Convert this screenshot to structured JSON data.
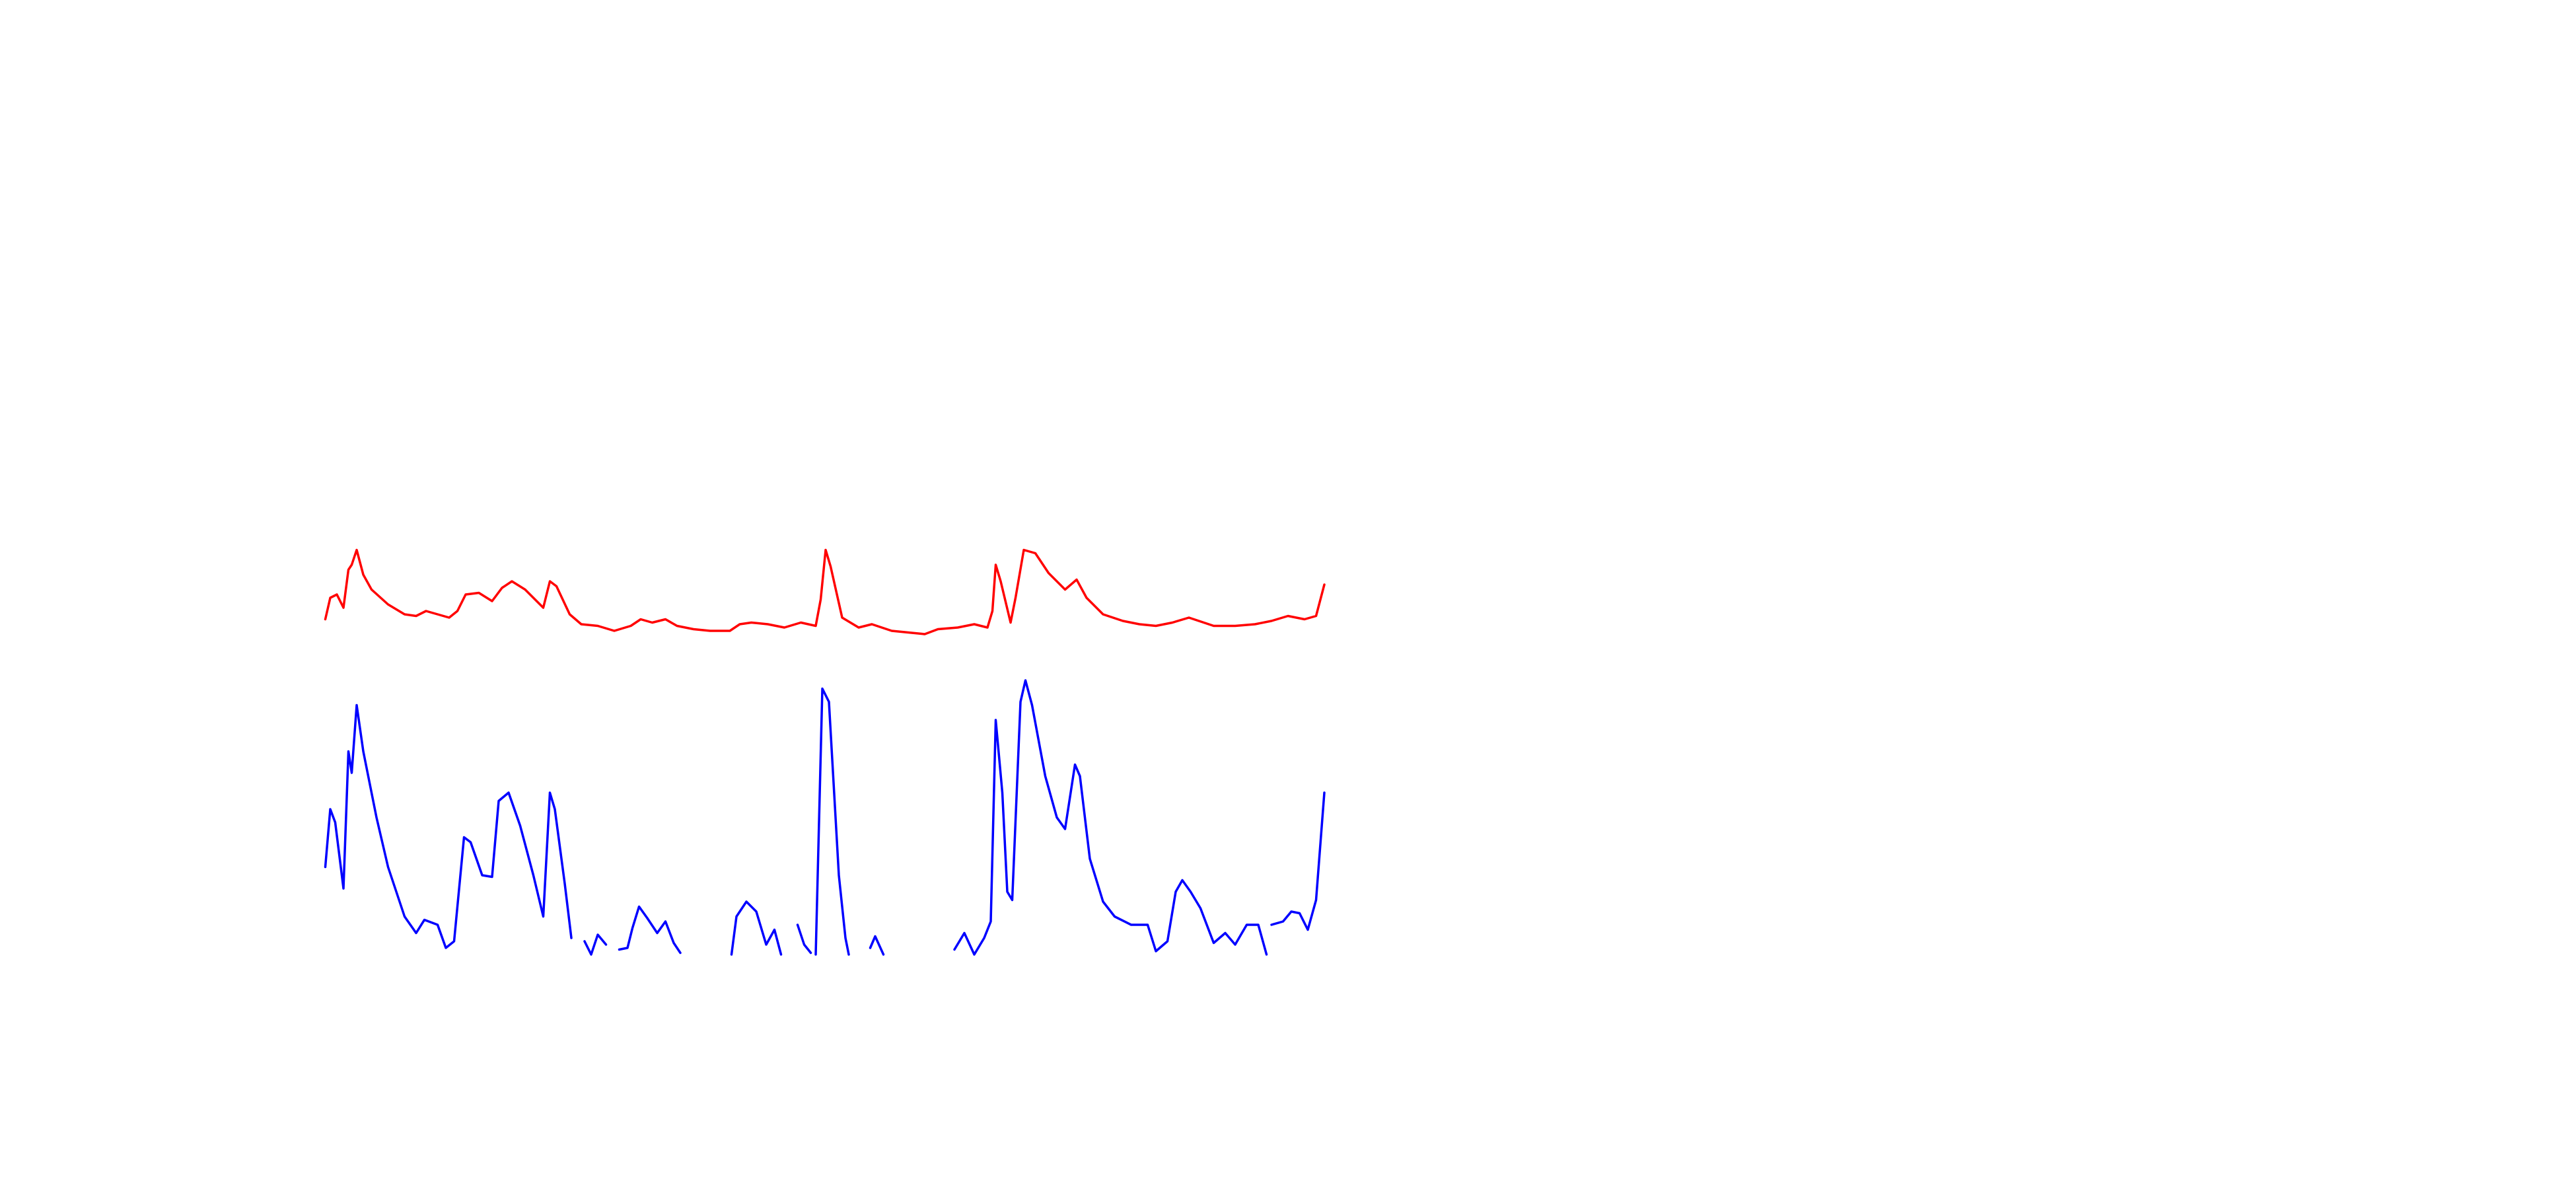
{
  "chart_data": {
    "type": "line",
    "xlim": [
      0,
      1560
    ],
    "ylim": [
      0,
      720
    ],
    "series": [
      {
        "color": "#ff0000",
        "x": [
          197,
          200,
          204,
          208,
          211,
          213,
          216,
          220,
          225,
          235,
          245,
          252,
          258,
          265,
          272,
          277,
          282,
          290,
          298,
          304,
          310,
          318,
          329,
          333,
          337,
          345,
          352,
          362,
          372,
          382,
          388,
          395,
          403,
          410,
          420,
          430,
          442,
          448,
          455,
          465,
          475,
          485,
          494,
          497,
          500,
          503,
          510,
          520,
          528,
          540,
          550,
          560,
          568,
          580,
          590,
          598,
          601,
          603,
          606,
          612,
          615,
          620,
          627,
          635,
          645,
          652,
          658,
          668,
          680,
          690,
          700,
          710,
          720,
          735,
          748,
          760,
          770,
          780,
          790,
          797,
          802
        ],
        "values": [
          345,
          358,
          360,
          352,
          375,
          378,
          387,
          372,
          363,
          354,
          348,
          347,
          350,
          348,
          346,
          350,
          360,
          361,
          356,
          364,
          368,
          363,
          352,
          368,
          365,
          348,
          342,
          341,
          338,
          341,
          345,
          343,
          345,
          341,
          339,
          338,
          338,
          342,
          343,
          342,
          340,
          343,
          341,
          357,
          387,
          377,
          346,
          340,
          342,
          338,
          337,
          336,
          339,
          340,
          342,
          340,
          350,
          378,
          368,
          343,
          358,
          387,
          385,
          373,
          363,
          369,
          358,
          348,
          344,
          342,
          341,
          343,
          346,
          341,
          341,
          342,
          344,
          347,
          345,
          347,
          366
        ]
      },
      {
        "color": "#0000ff",
        "x": [
          197,
          200,
          203,
          208,
          211,
          213,
          216,
          220,
          228,
          235,
          245,
          252,
          257,
          265,
          270,
          275,
          281,
          285,
          292,
          298,
          302,
          308,
          315,
          323,
          329,
          333,
          336,
          342,
          346,
          350,
          354,
          358,
          362,
          367,
          371,
          375,
          380,
          383,
          387,
          392,
          398,
          403,
          408,
          412,
          420,
          443,
          446,
          452,
          458,
          464,
          469,
          473,
          478,
          483,
          487,
          491,
          493,
          494,
          498,
          502,
          508,
          512,
          514,
          520,
          527,
          530,
          535,
          550,
          578,
          584,
          590,
          596,
          600,
          603,
          607,
          610,
          613,
          618,
          621,
          625,
          633,
          640,
          645,
          651,
          654,
          660,
          668,
          675,
          685,
          695,
          700,
          707,
          712,
          716,
          721,
          727,
          735,
          742,
          748,
          755,
          762,
          767,
          768,
          770,
          777,
          782,
          787,
          792,
          797,
          802
        ],
        "values": [
          195,
          230,
          222,
          182,
          265,
          252,
          293,
          265,
          225,
          195,
          165,
          155,
          163,
          160,
          146,
          150,
          213,
          210,
          190,
          189,
          235,
          240,
          220,
          190,
          165,
          240,
          230,
          185,
          152,
          null,
          150,
          142,
          154,
          148,
          null,
          145,
          146,
          158,
          171,
          164,
          155,
          162,
          149,
          143,
          null,
          142,
          165,
          174,
          168,
          148,
          157,
          142,
          null,
          160,
          148,
          143,
          null,
          142,
          303,
          295,
          190,
          152,
          142,
          null,
          146,
          153,
          142,
          null,
          145,
          155,
          142,
          152,
          162,
          284,
          240,
          180,
          175,
          295,
          308,
          293,
          250,
          225,
          218,
          257,
          250,
          200,
          174,
          165,
          160,
          160,
          144,
          150,
          180,
          187,
          180,
          170,
          149,
          155,
          148,
          160,
          160,
          142,
          null,
          160,
          162,
          168,
          167,
          157,
          175,
          240
        ]
      }
    ]
  }
}
